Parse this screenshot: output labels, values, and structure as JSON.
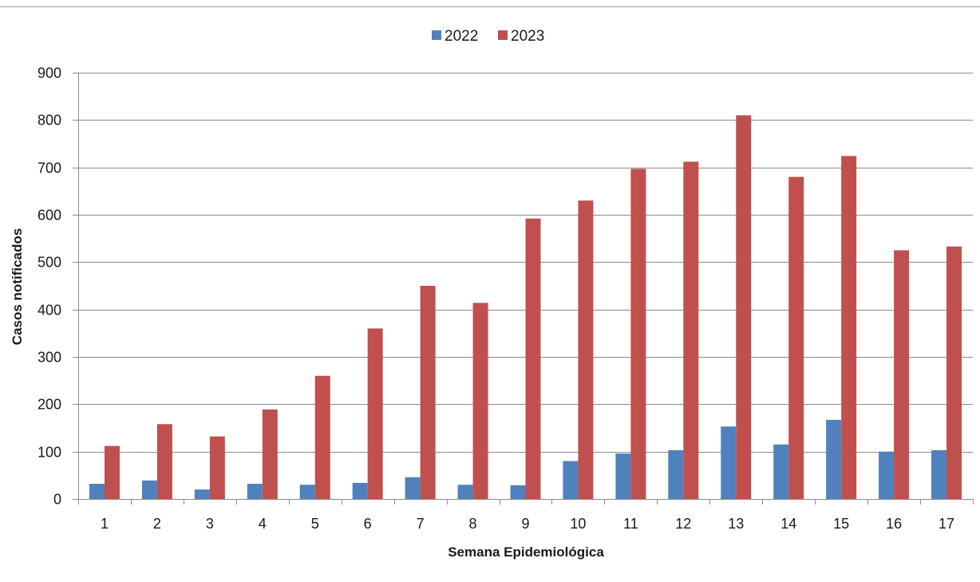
{
  "chart_data": {
    "type": "bar",
    "xlabel": "Semana Epidemiológica",
    "ylabel": "Casos notificados",
    "ylim": [
      0,
      900
    ],
    "yticks": [
      0,
      100,
      200,
      300,
      400,
      500,
      600,
      700,
      800,
      900
    ],
    "grid": true,
    "legend_position": "top-center",
    "categories": [
      "1",
      "2",
      "3",
      "4",
      "5",
      "6",
      "7",
      "8",
      "9",
      "10",
      "11",
      "12",
      "13",
      "14",
      "15",
      "16",
      "17"
    ],
    "series": [
      {
        "name": "2022",
        "color": "#4f81bd",
        "values": [
          32,
          39,
          20,
          32,
          30,
          34,
          46,
          30,
          29,
          80,
          96,
          103,
          153,
          115,
          167,
          100,
          103
        ]
      },
      {
        "name": "2023",
        "color": "#c0504d",
        "values": [
          112,
          158,
          132,
          189,
          260,
          360,
          450,
          414,
          592,
          630,
          697,
          712,
          810,
          680,
          724,
          525,
          533
        ]
      }
    ]
  }
}
